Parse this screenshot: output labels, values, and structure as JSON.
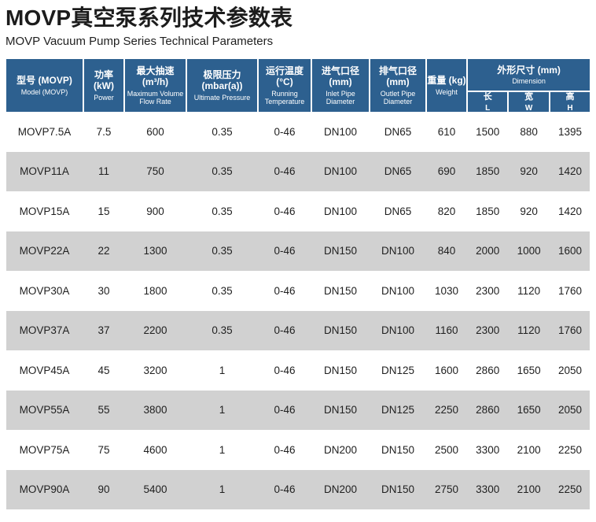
{
  "page": {
    "title": "MOVP真空泵系列技术参数表",
    "subtitle": "MOVP Vacuum Pump Series Technical Parameters"
  },
  "table": {
    "columns": [
      {
        "zh": "型号 (MOVP)",
        "en": "Model (MOVP)"
      },
      {
        "zh": "功率 (kW)",
        "en": "Power"
      },
      {
        "zh": "最大抽速 (m³/h)",
        "en": "Maximum Volume Flow Rate"
      },
      {
        "zh": "极限压力 (mbar(a))",
        "en": "Ultimate Pressure"
      },
      {
        "zh": "运行温度 (°C)",
        "en": "Running Temperature"
      },
      {
        "zh": "进气口径 (mm)",
        "en": "Inlet Pipe Diameter"
      },
      {
        "zh": "排气口径 (mm)",
        "en": "Outlet Pipe Diameter"
      },
      {
        "zh": "重量 (kg)",
        "en": "Weight"
      },
      {
        "zh": "外形尺寸 (mm)",
        "en": "Dimension",
        "sub": [
          {
            "zh": "长",
            "en": "L"
          },
          {
            "zh": "宽",
            "en": "W"
          },
          {
            "zh": "高",
            "en": "H"
          }
        ]
      }
    ],
    "rows": [
      [
        "MOVP7.5A",
        "7.5",
        "600",
        "0.35",
        "0-46",
        "DN100",
        "DN65",
        "610",
        "1500",
        "880",
        "1395"
      ],
      [
        "MOVP11A",
        "11",
        "750",
        "0.35",
        "0-46",
        "DN100",
        "DN65",
        "690",
        "1850",
        "920",
        "1420"
      ],
      [
        "MOVP15A",
        "15",
        "900",
        "0.35",
        "0-46",
        "DN100",
        "DN65",
        "820",
        "1850",
        "920",
        "1420"
      ],
      [
        "MOVP22A",
        "22",
        "1300",
        "0.35",
        "0-46",
        "DN150",
        "DN100",
        "840",
        "2000",
        "1000",
        "1600"
      ],
      [
        "MOVP30A",
        "30",
        "1800",
        "0.35",
        "0-46",
        "DN150",
        "DN100",
        "1030",
        "2300",
        "1120",
        "1760"
      ],
      [
        "MOVP37A",
        "37",
        "2200",
        "0.35",
        "0-46",
        "DN150",
        "DN100",
        "1160",
        "2300",
        "1120",
        "1760"
      ],
      [
        "MOVP45A",
        "45",
        "3200",
        "1",
        "0-46",
        "DN150",
        "DN125",
        "1600",
        "2860",
        "1650",
        "2050"
      ],
      [
        "MOVP55A",
        "55",
        "3800",
        "1",
        "0-46",
        "DN150",
        "DN125",
        "2250",
        "2860",
        "1650",
        "2050"
      ],
      [
        "MOVP75A",
        "75",
        "4600",
        "1",
        "0-46",
        "DN200",
        "DN150",
        "2500",
        "3300",
        "2100",
        "2250"
      ],
      [
        "MOVP90A",
        "90",
        "5400",
        "1",
        "0-46",
        "DN200",
        "DN150",
        "2750",
        "3300",
        "2100",
        "2250"
      ]
    ]
  },
  "colors": {
    "header_bg": "#2d608f",
    "header_text": "#ffffff",
    "row_alt_bg": "#d1d1d1",
    "body_text": "#1f1f1f"
  }
}
